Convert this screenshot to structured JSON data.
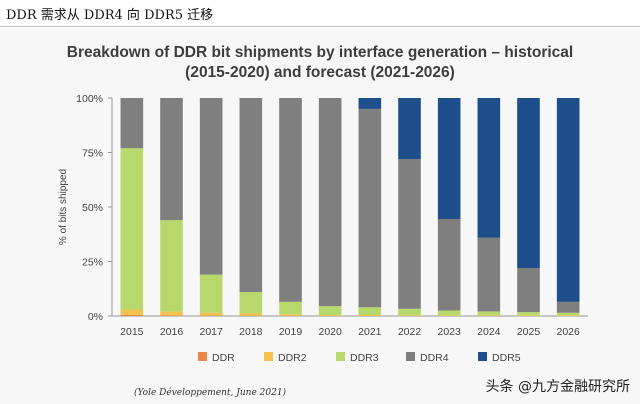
{
  "header": {
    "text": "DDR 需求从 DDR4 向 DDR5 迁移"
  },
  "chart_data": {
    "type": "bar",
    "stacked": true,
    "title_line1": "Breakdown of DDR bit shipments by interface generation – historical",
    "title_line2": "(2015-2020) and forecast (2021-2026)",
    "ylabel": "% of bits shipped",
    "xlabel": "",
    "ylim": [
      0,
      100
    ],
    "yticks": [
      "0%",
      "25%",
      "50%",
      "75%",
      "100%"
    ],
    "categories": [
      "2015",
      "2016",
      "2017",
      "2018",
      "2019",
      "2020",
      "2021",
      "2022",
      "2023",
      "2024",
      "2025",
      "2026"
    ],
    "series": [
      {
        "name": "DDR",
        "color": "#e8894a",
        "values": [
          0.5,
          0.3,
          0.2,
          0.1,
          0.1,
          0,
          0,
          0,
          0,
          0,
          0,
          0
        ]
      },
      {
        "name": "DDR2",
        "color": "#f2c14e",
        "values": [
          2.5,
          1.7,
          1.3,
          1.2,
          0.7,
          0.5,
          0.5,
          0.3,
          0.3,
          0.3,
          0.3,
          0.3
        ]
      },
      {
        "name": "DDR3",
        "color": "#b7d86b",
        "values": [
          74,
          42,
          17.5,
          9.7,
          5.7,
          4,
          3.5,
          3,
          2.2,
          1.8,
          1.5,
          1.2
        ]
      },
      {
        "name": "DDR4",
        "color": "#7f7f7f",
        "values": [
          23,
          56,
          81,
          89,
          93.5,
          95.5,
          91,
          68.7,
          42,
          33.9,
          20.2,
          5
        ]
      },
      {
        "name": "DDR5",
        "color": "#1f4e8c",
        "values": [
          0,
          0,
          0,
          0,
          0,
          0,
          5,
          28,
          55.5,
          64,
          78,
          93.5
        ]
      }
    ],
    "legend_position": "bottom",
    "source": "(Yole Développement, June 2021)"
  },
  "watermark": "头条 @九方金融研究所"
}
